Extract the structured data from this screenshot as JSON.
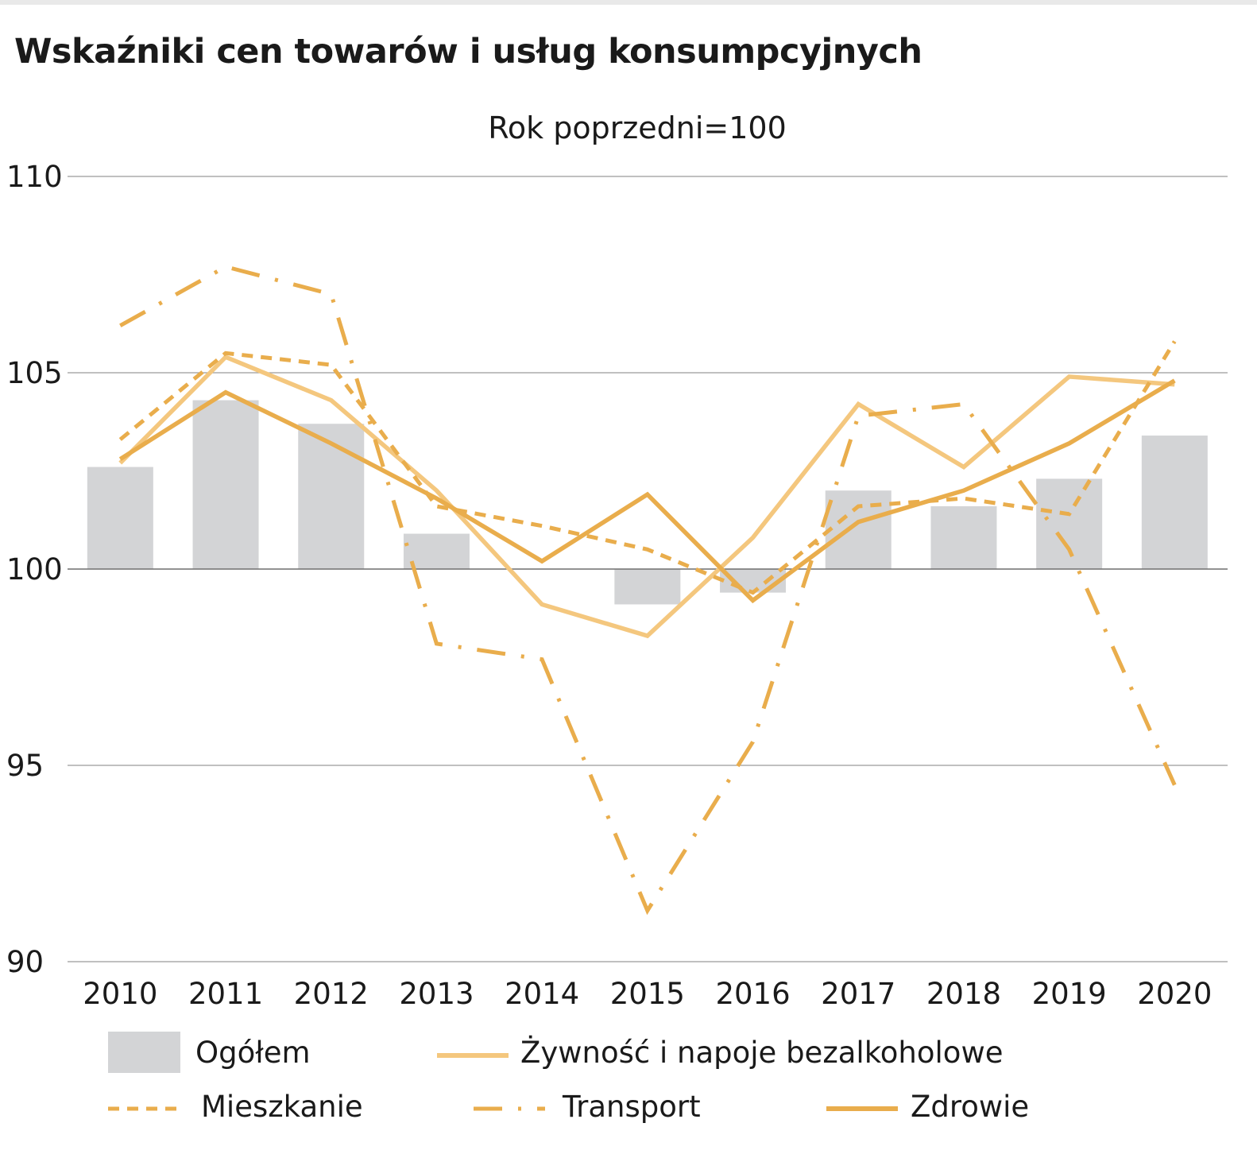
{
  "title": "Wskaźniki cen towarów i usług konsumpcyjnych",
  "colors": {
    "bars": "#d3d4d6",
    "food": "#f4c77e",
    "lines": "#e9ad4c",
    "grid": "#9a9a9a",
    "baseline": "#6f6f6f"
  },
  "chart_data": {
    "type": "bar",
    "subtitle": "Rok poprzedni=100",
    "categories": [
      "2010",
      "2011",
      "2012",
      "2013",
      "2014",
      "2015",
      "2016",
      "2017",
      "2018",
      "2019",
      "2020"
    ],
    "ylim": [
      90,
      110
    ],
    "yticks": [
      90,
      95,
      100,
      105,
      110
    ],
    "baseline": 100,
    "grid": true,
    "legend_position": "bottom",
    "bars": {
      "name": "Ogółem",
      "values": [
        102.6,
        104.3,
        103.7,
        100.9,
        100.0,
        99.1,
        99.4,
        102.0,
        101.6,
        102.3,
        103.4
      ]
    },
    "series": [
      {
        "name": "Żywność i napoje bezalkoholowe",
        "style": "solid-light",
        "values": [
          102.7,
          105.4,
          104.3,
          102.0,
          99.1,
          98.3,
          100.8,
          104.2,
          102.6,
          104.9,
          104.7
        ]
      },
      {
        "name": "Mieszkanie",
        "style": "dashed",
        "values": [
          103.3,
          105.5,
          105.2,
          101.6,
          101.1,
          100.5,
          99.4,
          101.6,
          101.8,
          101.4,
          105.8
        ]
      },
      {
        "name": "Transport",
        "style": "dash-dot",
        "values": [
          106.2,
          107.7,
          107.0,
          98.1,
          97.7,
          91.3,
          95.6,
          103.9,
          104.2,
          100.5,
          94.5
        ]
      },
      {
        "name": "Zdrowie",
        "style": "solid",
        "values": [
          102.8,
          104.5,
          103.2,
          101.8,
          100.2,
          101.9,
          99.2,
          101.2,
          102.0,
          103.2,
          104.8
        ]
      }
    ]
  }
}
